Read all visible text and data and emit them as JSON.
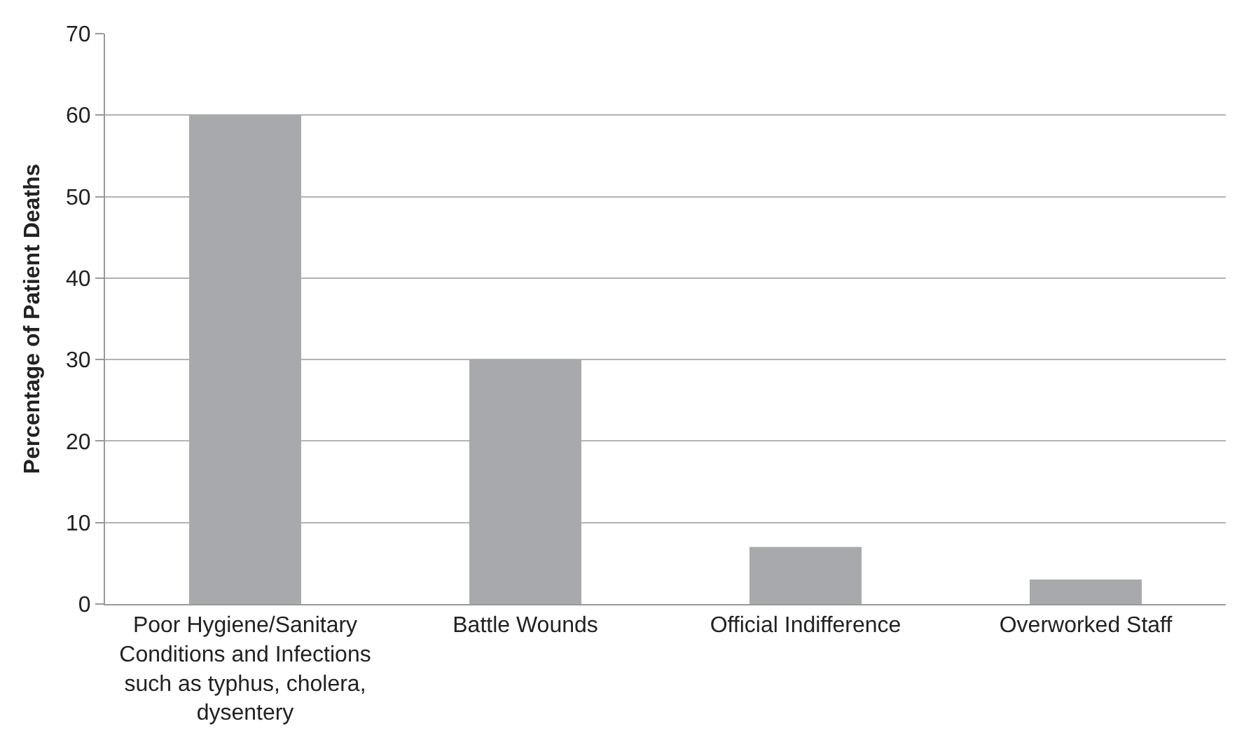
{
  "chart_data": {
    "type": "bar",
    "ylabel": "Percentage of Patient Deaths",
    "categories": [
      "Poor Hygiene/Sanitary Conditions and Infections such as typhus, cholera, dysentery",
      "Battle Wounds",
      "Official Indifference",
      "Overworked Staff"
    ],
    "values": [
      60,
      30,
      7,
      3
    ],
    "color": "#a7a9ac",
    "ylim": [
      0,
      70
    ],
    "yticks": [
      0,
      10,
      20,
      30,
      40,
      50,
      60,
      70
    ],
    "grid": "y",
    "legend": false
  }
}
